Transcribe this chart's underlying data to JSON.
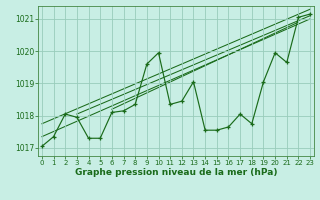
{
  "title": "Graphe pression niveau de la mer (hPa)",
  "background_color": "#c8eee4",
  "grid_color": "#99ccbb",
  "line_color": "#1a6b1a",
  "ylim": [
    1016.75,
    1021.4
  ],
  "yticks": [
    1017,
    1018,
    1019,
    1020,
    1021
  ],
  "xlim": [
    -0.3,
    23.3
  ],
  "xticks": [
    0,
    1,
    2,
    3,
    4,
    5,
    6,
    7,
    8,
    9,
    10,
    11,
    12,
    13,
    14,
    15,
    16,
    17,
    18,
    19,
    20,
    21,
    22,
    23
  ],
  "hours": [
    0,
    1,
    2,
    3,
    4,
    5,
    6,
    7,
    8,
    9,
    10,
    11,
    12,
    13,
    14,
    15,
    16,
    17,
    18,
    19,
    20,
    21,
    22,
    23
  ],
  "pressure": [
    1017.05,
    1017.35,
    1018.05,
    1017.95,
    1017.3,
    1017.3,
    1018.1,
    1018.15,
    1018.35,
    1019.6,
    1019.95,
    1018.35,
    1018.45,
    1019.05,
    1017.55,
    1017.55,
    1017.65,
    1018.05,
    1017.75,
    1019.05,
    1019.95,
    1019.65,
    1021.05,
    1021.15
  ],
  "trend_lines": [
    [
      0,
      1017.35,
      23,
      1021.0
    ],
    [
      0,
      1017.75,
      23,
      1021.3
    ],
    [
      3,
      1018.05,
      23,
      1021.1
    ],
    [
      6,
      1018.2,
      22,
      1020.9
    ]
  ]
}
